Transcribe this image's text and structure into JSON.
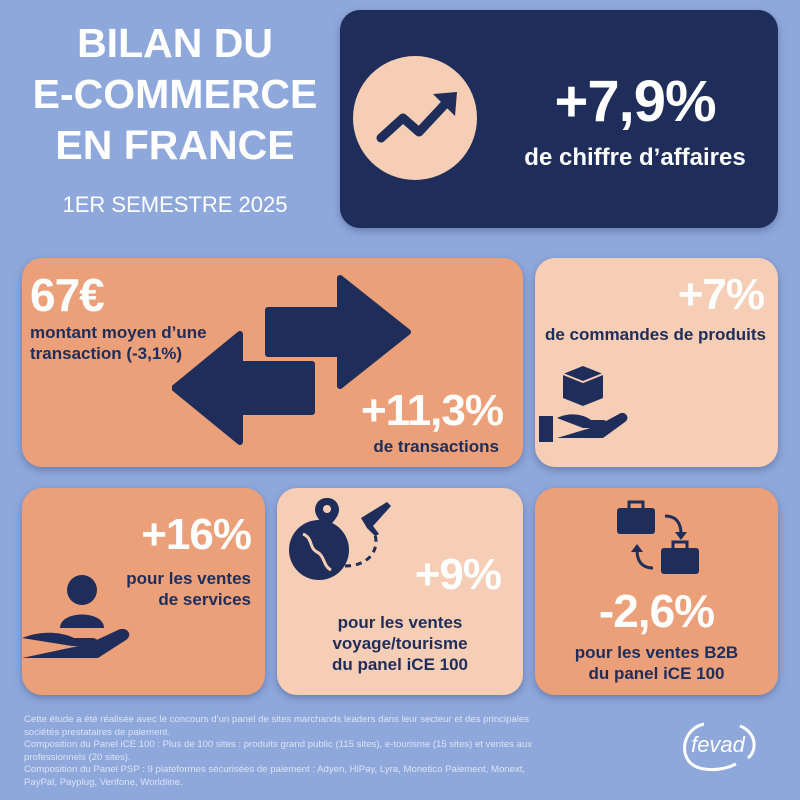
{
  "header": {
    "title_lines": [
      "BILAN DU",
      "E-COMMERCE",
      "EN FRANCE"
    ],
    "subtitle": "1ER SEMESTRE 2025"
  },
  "colors": {
    "background": "#8fa8dc",
    "navy": "#1e2d5a",
    "orange": "#eba07a",
    "peach": "#f6cdb5"
  },
  "stats": {
    "revenue": {
      "value": "+7,9%",
      "label": "de chiffre d’affaires",
      "icon": "trend-up-icon"
    },
    "avg_transaction": {
      "value": "67€",
      "label_lines": [
        "montant moyen d’une",
        "transaction (-3,1%)"
      ]
    },
    "transactions": {
      "value": "+11,3%",
      "label": "de transactions",
      "icon": "exchange-arrows-icon"
    },
    "orders": {
      "value": "+7%",
      "label": "de commandes de produits",
      "icon": "hand-box-icon"
    },
    "services": {
      "value": "+16%",
      "label_lines": [
        "pour les ventes",
        "de services"
      ],
      "icon": "hand-person-icon"
    },
    "travel": {
      "value": "+9%",
      "label_lines": [
        "pour les ventes",
        "voyage/tourisme",
        "du panel iCE 100"
      ],
      "icon": "globe-plane-icon"
    },
    "b2b": {
      "value": "-2,6%",
      "label_lines": [
        "pour les ventes B2B",
        "du panel iCE 100"
      ],
      "icon": "briefcase-swap-icon"
    }
  },
  "footer": {
    "lines": [
      "Cette étude a été réalisée avec le concours d’un panel de sites marchands leaders dans leur secteur et des principales sociétés prestataires de paiement.",
      "Composition du Panel iCE 100 : Plus de 100 sites : produits grand public (115 sites), e-tourisme (15 sites) et ventes aux professionnels (20 sites).",
      "Composition du Panel PSP : 9 plateformes sécurisées de paiement : Adyen, HiPay, Lyra, Monetico Paiement, Monext, PayPal, Payplug, Verifone, Worldline."
    ],
    "logo": "fevad"
  }
}
